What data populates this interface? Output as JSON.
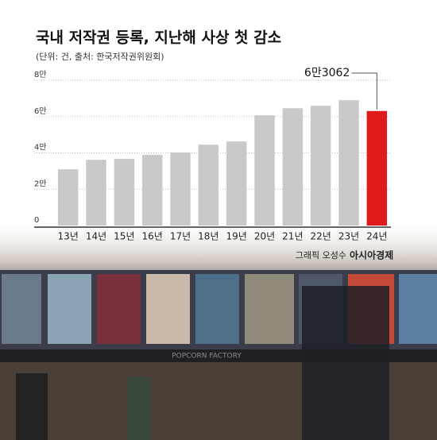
{
  "chart_data": {
    "type": "bar",
    "title": "국내 저작권 등록, 지난해 사상 첫 감소",
    "subtitle": "(단위: 건, 출처: 한국저작권위원회)",
    "credit": "그래픽 오성수",
    "publisher": "아시아경제",
    "background_text": "POPCORN FACTORY",
    "categories": [
      "13년",
      "14년",
      "15년",
      "16년",
      "17년",
      "18년",
      "19년",
      "20년",
      "21년",
      "22년",
      "23년",
      "24년"
    ],
    "values": [
      31000,
      36200,
      36700,
      38900,
      40200,
      44500,
      46300,
      60700,
      64600,
      65900,
      69000,
      63062
    ],
    "value_labels": [
      null,
      null,
      null,
      null,
      null,
      null,
      null,
      null,
      null,
      null,
      null,
      "6만3062"
    ],
    "colors": [
      "#c9c9c9",
      "#c9c9c9",
      "#c9c9c9",
      "#c9c9c9",
      "#c9c9c9",
      "#c9c9c9",
      "#c9c9c9",
      "#c9c9c9",
      "#c9c9c9",
      "#c9c9c9",
      "#c9c9c9",
      "#e0191b"
    ],
    "ylim": [
      0,
      80000
    ],
    "yticks": [
      0,
      {
        "value": 20000,
        "label": "2만"
      },
      {
        "value": 40000,
        "label": "4만"
      },
      {
        "value": 60000,
        "label": "6만"
      },
      {
        "value": 80000,
        "label": "8만"
      }
    ],
    "grid": true
  }
}
